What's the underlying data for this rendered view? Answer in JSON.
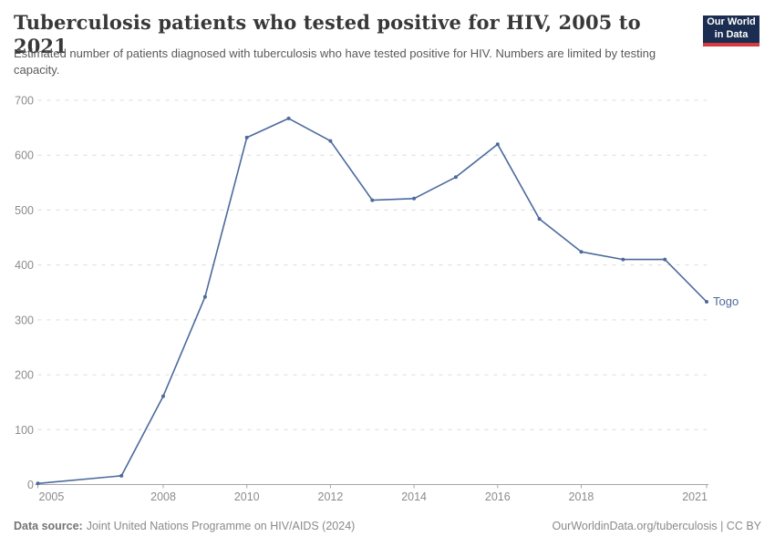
{
  "header": {
    "title": "Tuberculosis patients who tested positive for HIV, 2005 to 2021",
    "subtitle": "Estimated number of patients diagnosed with tuberculosis who have tested positive for HIV. Numbers are limited by testing capacity.",
    "logo": {
      "line1": "Our World",
      "line2": "in Data",
      "bg_color": "#1b2e52",
      "accent_color": "#d93a3f"
    }
  },
  "chart_data": {
    "type": "line",
    "title": "Tuberculosis patients who tested positive for HIV, 2005 to 2021",
    "xlabel": "",
    "ylabel": "",
    "xlim": [
      2005,
      2021
    ],
    "ylim": [
      0,
      700
    ],
    "x": [
      2005,
      2007,
      2008,
      2009,
      2010,
      2011,
      2012,
      2013,
      2014,
      2015,
      2016,
      2017,
      2018,
      2019,
      2020,
      2021
    ],
    "series": [
      {
        "name": "Togo",
        "color": "#4C6A9C",
        "values": [
          2,
          16,
          161,
          342,
          632,
          667,
          626,
          518,
          521,
          560,
          620,
          484,
          424,
          410,
          410,
          333
        ]
      }
    ],
    "xticks": [
      2005,
      2008,
      2010,
      2012,
      2014,
      2016,
      2018,
      2021
    ],
    "yticks": [
      0,
      100,
      200,
      300,
      400,
      500,
      600,
      700
    ],
    "grid": "horizontal-dashed",
    "legend": "series-end-label",
    "axis_color": "#a6a6a6",
    "gridline_color": "#dcdcdc",
    "tick_label_color": "#8c8c8c"
  },
  "footer": {
    "source_label": "Data source:",
    "source_text": "Joint United Nations Programme on HIV/AIDS (2024)",
    "link_text": "OurWorldinData.org/tuberculosis | CC BY"
  }
}
